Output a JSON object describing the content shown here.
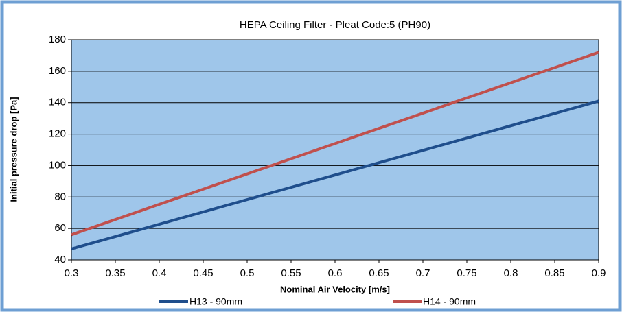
{
  "chart_data": {
    "type": "line",
    "title": "HEPA Ceiling Filter - Pleat Code:5 (PH90)",
    "xlabel": "Nominal Air Velocity [m/s]",
    "ylabel": "Initial pressure drop [Pa]",
    "x": [
      0.3,
      0.9
    ],
    "series": [
      {
        "name": "H13 - 90mm",
        "color": "#1f4e8c",
        "values": [
          47,
          141
        ]
      },
      {
        "name": "H14 - 90mm",
        "color": "#c0504d",
        "values": [
          56,
          172
        ]
      }
    ],
    "xlim": [
      0.3,
      0.9
    ],
    "xticks": [
      0.3,
      0.35,
      0.4,
      0.45,
      0.5,
      0.55,
      0.6,
      0.65,
      0.7,
      0.75,
      0.8,
      0.85,
      0.9
    ],
    "ylim": [
      40,
      180
    ],
    "yticks": [
      40,
      60,
      80,
      100,
      120,
      140,
      160,
      180
    ],
    "grid": true,
    "legend": "bottom",
    "background": "#9fc6ea"
  }
}
